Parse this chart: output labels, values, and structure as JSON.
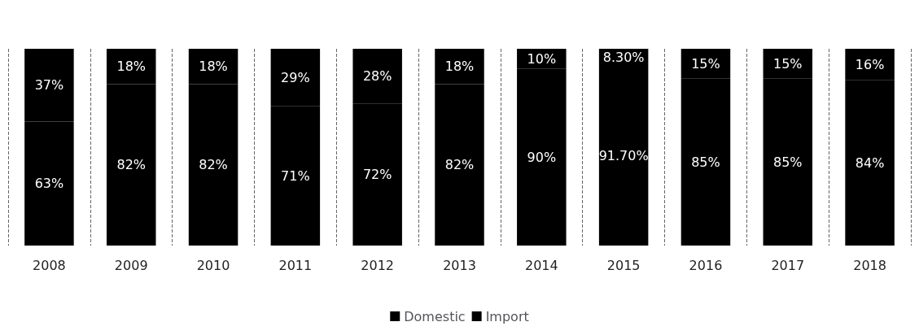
{
  "chart_data": {
    "type": "bar",
    "stacked": true,
    "categories": [
      "2008",
      "2009",
      "2010",
      "2011",
      "2012",
      "2013",
      "2014",
      "2015",
      "2016",
      "2017",
      "2018"
    ],
    "series": [
      {
        "name": "Domestic",
        "color": "#000000",
        "values": [
          63,
          82,
          82,
          71,
          72,
          82,
          90,
          91.7,
          85,
          85,
          84
        ],
        "value_labels": [
          "63%",
          "82%",
          "82%",
          "71%",
          "72%",
          "82%",
          "90%",
          "91.70%",
          "85%",
          "85%",
          "84%"
        ]
      },
      {
        "name": "Import",
        "color": "#000000",
        "values": [
          37,
          18,
          18,
          29,
          28,
          18,
          10,
          8.3,
          15,
          15,
          16
        ],
        "value_labels": [
          "37%",
          "18%",
          "18%",
          "29%",
          "28%",
          "18%",
          "10%",
          "8.30%",
          "15%",
          "15%",
          "16%"
        ]
      }
    ],
    "ylim": [
      0,
      100
    ],
    "grid": "x",
    "legend": "bottom"
  }
}
